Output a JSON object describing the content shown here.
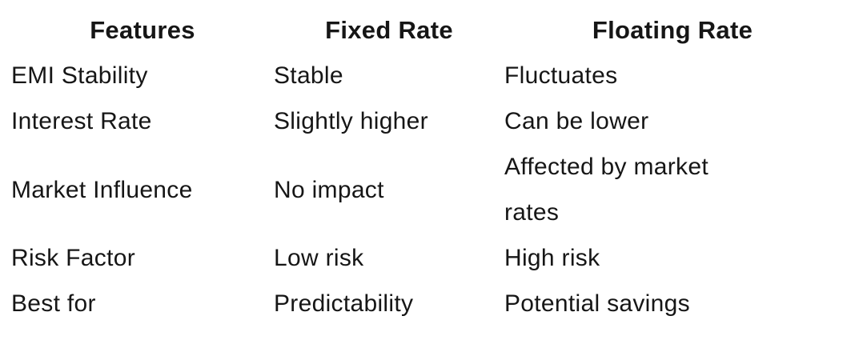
{
  "page": {
    "background_color": "#ffffff",
    "text_color": "#161616"
  },
  "table": {
    "headers": [
      {
        "label": "Features"
      },
      {
        "label": "Fixed Rate"
      },
      {
        "label": "Floating Rate"
      }
    ],
    "rows": [
      {
        "feature": "EMI Stability",
        "fixed_rate": "Stable",
        "floating_rate": "Fluctuates"
      },
      {
        "feature": "Interest Rate",
        "fixed_rate": "Slightly higher",
        "floating_rate": "Can be lower"
      },
      {
        "feature": "Market Influence",
        "fixed_rate": "No impact",
        "floating_rate": "Affected by market rates"
      },
      {
        "feature": "Risk Factor",
        "fixed_rate": "Low risk",
        "floating_rate": "High risk"
      },
      {
        "feature": "Best for",
        "fixed_rate": "Predictability",
        "floating_rate": "Potential savings"
      }
    ]
  }
}
